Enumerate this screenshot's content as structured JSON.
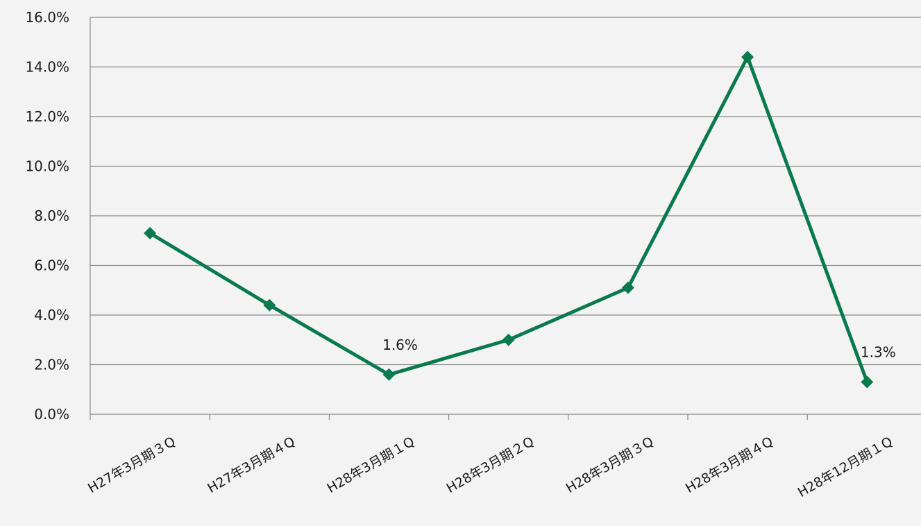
{
  "chart_data": {
    "type": "line",
    "title": "",
    "xlabel": "",
    "ylabel": "",
    "categories": [
      "H27年3月期３Q",
      "H27年3月期４Q",
      "H28年3月期１Q",
      "H28年3月期２Q",
      "H28年3月期３Q",
      "H28年3月期４Q",
      "H28年12月期１Q"
    ],
    "series": [
      {
        "values": [
          7.3,
          4.4,
          1.6,
          3.0,
          5.1,
          14.4,
          1.3
        ],
        "color": "#0a7a4e",
        "marker": "diamond"
      }
    ],
    "data_labels": [
      {
        "index": 2,
        "text": "1.6%"
      },
      {
        "index": 6,
        "text": "1.3%"
      }
    ],
    "ylim": [
      0,
      16
    ],
    "yticks": [
      0,
      2,
      4,
      6,
      8,
      10,
      12,
      14,
      16
    ],
    "ytick_labels": [
      "0.0%",
      "2.0%",
      "4.0%",
      "6.0%",
      "8.0%",
      "10.0%",
      "12.0%",
      "14.0%",
      "16.0%"
    ],
    "grid": true,
    "legend": "none"
  }
}
